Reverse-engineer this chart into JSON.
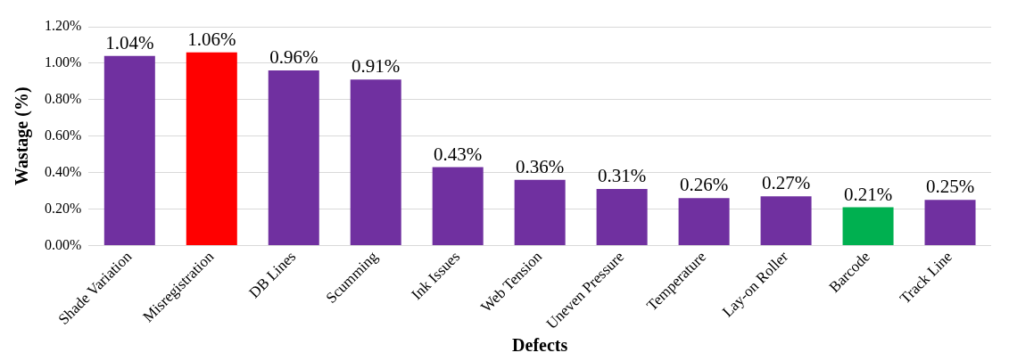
{
  "chart_data": {
    "type": "bar",
    "xlabel": "Defects",
    "ylabel": "Wastage (%)",
    "categories": [
      "Shade Variation",
      "Misregistration",
      "DB Lines",
      "Scumming",
      "Ink Issues",
      "Web Tension",
      "Uneven Pressure",
      "Temperature",
      "Lay-on Roller",
      "Barcode",
      "Track Line"
    ],
    "values": [
      1.04,
      1.06,
      0.96,
      0.91,
      0.43,
      0.36,
      0.31,
      0.26,
      0.27,
      0.21,
      0.25
    ],
    "colors": [
      "#7030a0",
      "#ff0000",
      "#7030a0",
      "#7030a0",
      "#7030a0",
      "#7030a0",
      "#7030a0",
      "#7030a0",
      "#7030a0",
      "#00b050",
      "#7030a0"
    ],
    "value_labels": [
      "1.04%",
      "1.06%",
      "0.96%",
      "0.91%",
      "0.43%",
      "0.36%",
      "0.31%",
      "0.26%",
      "0.27%",
      "0.21%",
      "0.25%"
    ],
    "ylim": [
      0,
      1.2
    ],
    "yticks": [
      {
        "value": 0,
        "label": "0.00%"
      },
      {
        "value": 0.2,
        "label": "0.20%"
      },
      {
        "value": 0.4,
        "label": "0.40%"
      },
      {
        "value": 0.6,
        "label": "0.60%"
      },
      {
        "value": 0.8,
        "label": "0.80%"
      },
      {
        "value": 1,
        "label": "1.00%"
      },
      {
        "value": 1.2,
        "label": "1.20%"
      }
    ],
    "grid": "y",
    "legend": false
  }
}
